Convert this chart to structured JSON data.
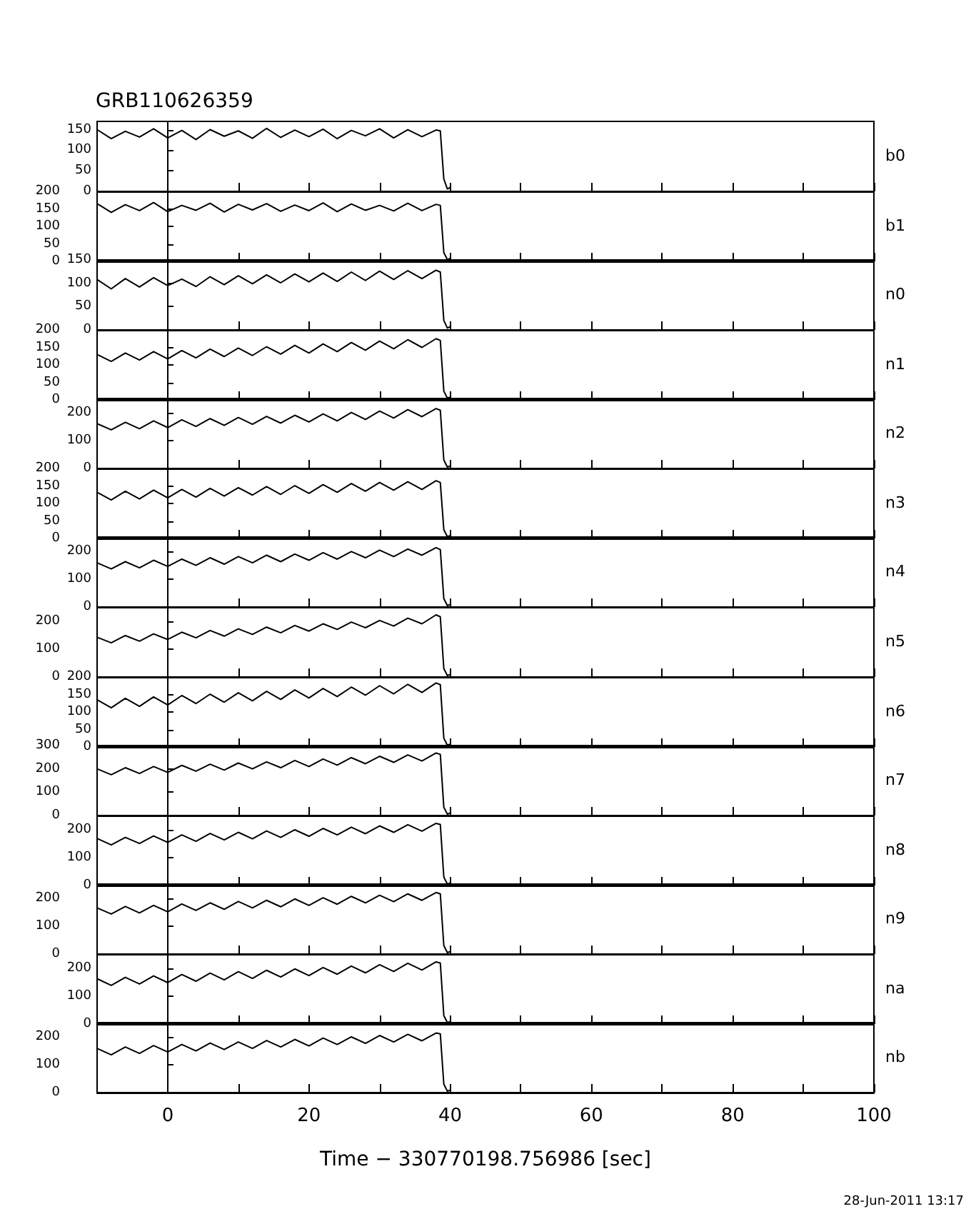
{
  "chart_data": [
    {
      "type": "line",
      "title": "GRB110626359",
      "x": [
        -10,
        -8,
        -6,
        -4,
        -2,
        0,
        2,
        4,
        6,
        8,
        10,
        12,
        14,
        16,
        18,
        20,
        22,
        24,
        26,
        28,
        30,
        32,
        34,
        36,
        38,
        38.6,
        39.1,
        39.6,
        40.1
      ],
      "values": [
        150,
        128,
        146,
        132,
        152,
        130,
        148,
        126,
        150,
        134,
        147,
        129,
        153,
        131,
        149,
        133,
        151,
        128,
        148,
        135,
        152,
        130,
        150,
        133,
        149,
        147,
        30,
        6,
        10
      ],
      "color": "#000000",
      "xlim": [
        -10,
        100
      ],
      "xticks": [
        0,
        {
          "value": 10,
          "label": null
        },
        20,
        {
          "value": 30,
          "label": null
        },
        40,
        {
          "value": 50,
          "label": null
        },
        60,
        {
          "value": 70,
          "label": null
        },
        80,
        {
          "value": 90,
          "label": null
        },
        100
      ],
      "ylim": [
        0,
        170
      ],
      "yticks": [
        0,
        50,
        100,
        150
      ],
      "tick_labels": "y",
      "marker": "none",
      "line_style": "solid",
      "annotations": [
        "b0"
      ]
    },
    {
      "type": "line",
      "x": [
        -10,
        -8,
        -6,
        -4,
        -2,
        0,
        2,
        4,
        6,
        8,
        10,
        12,
        14,
        16,
        18,
        20,
        22,
        24,
        26,
        28,
        30,
        32,
        34,
        36,
        38,
        38.6,
        39.1,
        39.6,
        40.1
      ],
      "values": [
        165,
        140,
        162,
        145,
        168,
        142,
        160,
        146,
        166,
        141,
        163,
        147,
        165,
        143,
        161,
        145,
        167,
        142,
        164,
        146,
        160,
        144,
        166,
        145,
        163,
        160,
        25,
        5,
        9
      ],
      "color": "#000000",
      "xlim": [
        -10,
        100
      ],
      "xticks": [
        0,
        {
          "value": 10,
          "label": null
        },
        20,
        {
          "value": 30,
          "label": null
        },
        40,
        {
          "value": 50,
          "label": null
        },
        60,
        {
          "value": 70,
          "label": null
        },
        80,
        {
          "value": 90,
          "label": null
        },
        100
      ],
      "ylim": [
        0,
        200
      ],
      "yticks": [
        0,
        50,
        100,
        150,
        200
      ],
      "tick_labels": "y",
      "marker": "none",
      "line_style": "solid",
      "annotations": [
        "b1"
      ]
    },
    {
      "type": "line",
      "x": [
        -10,
        -8,
        -6,
        -4,
        -2,
        0,
        2,
        4,
        6,
        8,
        10,
        12,
        14,
        16,
        18,
        20,
        22,
        24,
        26,
        28,
        30,
        32,
        34,
        36,
        38,
        38.6,
        39.1,
        39.6,
        40.1
      ],
      "values": [
        108,
        88,
        110,
        92,
        112,
        95,
        109,
        93,
        114,
        97,
        116,
        99,
        118,
        101,
        120,
        103,
        122,
        104,
        124,
        106,
        126,
        108,
        127,
        110,
        128,
        124,
        20,
        4,
        8
      ],
      "color": "#000000",
      "xlim": [
        -10,
        100
      ],
      "xticks": [
        0,
        {
          "value": 10,
          "label": null
        },
        20,
        {
          "value": 30,
          "label": null
        },
        40,
        {
          "value": 50,
          "label": null
        },
        60,
        {
          "value": 70,
          "label": null
        },
        80,
        {
          "value": 90,
          "label": null
        },
        100
      ],
      "ylim": [
        0,
        150
      ],
      "yticks": [
        0,
        50,
        100,
        150
      ],
      "tick_labels": "y",
      "marker": "none",
      "line_style": "solid",
      "annotations": [
        "n0"
      ]
    },
    {
      "type": "line",
      "x": [
        -10,
        -8,
        -6,
        -4,
        -2,
        0,
        2,
        4,
        6,
        8,
        10,
        12,
        14,
        16,
        18,
        20,
        22,
        24,
        26,
        28,
        30,
        32,
        34,
        36,
        38,
        38.6,
        39.1,
        39.6,
        40.1
      ],
      "values": [
        130,
        110,
        134,
        114,
        138,
        117,
        141,
        120,
        145,
        124,
        148,
        127,
        152,
        131,
        156,
        134,
        160,
        138,
        164,
        142,
        168,
        146,
        172,
        150,
        175,
        170,
        25,
        5,
        9
      ],
      "color": "#000000",
      "xlim": [
        -10,
        100
      ],
      "xticks": [
        0,
        {
          "value": 10,
          "label": null
        },
        20,
        {
          "value": 30,
          "label": null
        },
        40,
        {
          "value": 50,
          "label": null
        },
        60,
        {
          "value": 70,
          "label": null
        },
        80,
        {
          "value": 90,
          "label": null
        },
        100
      ],
      "ylim": [
        0,
        200
      ],
      "yticks": [
        0,
        50,
        100,
        150,
        200
      ],
      "tick_labels": "y",
      "marker": "none",
      "line_style": "solid",
      "annotations": [
        "n1"
      ]
    },
    {
      "type": "line",
      "x": [
        -10,
        -8,
        -6,
        -4,
        -2,
        0,
        2,
        4,
        6,
        8,
        10,
        12,
        14,
        16,
        18,
        20,
        22,
        24,
        26,
        28,
        30,
        32,
        34,
        36,
        38,
        38.6,
        39.1,
        39.6,
        40.1
      ],
      "values": [
        160,
        138,
        165,
        142,
        170,
        146,
        174,
        150,
        178,
        154,
        182,
        158,
        186,
        162,
        190,
        166,
        195,
        170,
        200,
        175,
        205,
        180,
        210,
        185,
        214,
        208,
        30,
        5,
        10
      ],
      "color": "#000000",
      "xlim": [
        -10,
        100
      ],
      "xticks": [
        0,
        {
          "value": 10,
          "label": null
        },
        20,
        {
          "value": 30,
          "label": null
        },
        40,
        {
          "value": 50,
          "label": null
        },
        60,
        {
          "value": 70,
          "label": null
        },
        80,
        {
          "value": 90,
          "label": null
        },
        100
      ],
      "ylim": [
        0,
        250
      ],
      "yticks": [
        0,
        100,
        200
      ],
      "tick_labels": "y",
      "marker": "none",
      "line_style": "solid",
      "annotations": [
        "n2"
      ]
    },
    {
      "type": "line",
      "x": [
        -10,
        -8,
        -6,
        -4,
        -2,
        0,
        2,
        4,
        6,
        8,
        10,
        12,
        14,
        16,
        18,
        20,
        22,
        24,
        26,
        28,
        30,
        32,
        34,
        36,
        38,
        38.6,
        39.1,
        39.6,
        40.1
      ],
      "values": [
        132,
        110,
        135,
        113,
        138,
        116,
        140,
        118,
        143,
        121,
        145,
        124,
        148,
        126,
        151,
        129,
        154,
        132,
        157,
        135,
        160,
        138,
        162,
        140,
        165,
        160,
        25,
        5,
        9
      ],
      "color": "#000000",
      "xlim": [
        -10,
        100
      ],
      "xticks": [
        0,
        {
          "value": 10,
          "label": null
        },
        20,
        {
          "value": 30,
          "label": null
        },
        40,
        {
          "value": 50,
          "label": null
        },
        60,
        {
          "value": 70,
          "label": null
        },
        80,
        {
          "value": 90,
          "label": null
        },
        100
      ],
      "ylim": [
        0,
        200
      ],
      "yticks": [
        0,
        50,
        100,
        150,
        200
      ],
      "tick_labels": "y",
      "marker": "none",
      "line_style": "solid",
      "annotations": [
        "n3"
      ]
    },
    {
      "type": "line",
      "x": [
        -10,
        -8,
        -6,
        -4,
        -2,
        0,
        2,
        4,
        6,
        8,
        10,
        12,
        14,
        16,
        18,
        20,
        22,
        24,
        26,
        28,
        30,
        32,
        34,
        36,
        38,
        38.6,
        39.1,
        39.6,
        40.1
      ],
      "values": [
        158,
        136,
        162,
        140,
        167,
        145,
        171,
        149,
        176,
        153,
        180,
        158,
        185,
        162,
        189,
        167,
        194,
        171,
        198,
        176,
        203,
        180,
        207,
        185,
        212,
        205,
        30,
        5,
        10
      ],
      "color": "#000000",
      "xlim": [
        -10,
        100
      ],
      "xticks": [
        0,
        {
          "value": 10,
          "label": null
        },
        20,
        {
          "value": 30,
          "label": null
        },
        40,
        {
          "value": 50,
          "label": null
        },
        60,
        {
          "value": 70,
          "label": null
        },
        80,
        {
          "value": 90,
          "label": null
        },
        100
      ],
      "ylim": [
        0,
        250
      ],
      "yticks": [
        0,
        100,
        200
      ],
      "tick_labels": "y",
      "marker": "none",
      "line_style": "solid",
      "annotations": [
        "n4"
      ]
    },
    {
      "type": "line",
      "x": [
        -10,
        -8,
        -6,
        -4,
        -2,
        0,
        2,
        4,
        6,
        8,
        10,
        12,
        14,
        16,
        18,
        20,
        22,
        24,
        26,
        28,
        30,
        32,
        34,
        36,
        38,
        38.6,
        39.1,
        39.6,
        40.1
      ],
      "values": [
        142,
        122,
        148,
        128,
        154,
        134,
        160,
        140,
        166,
        146,
        172,
        152,
        178,
        158,
        184,
        164,
        190,
        170,
        196,
        176,
        202,
        182,
        210,
        190,
        222,
        215,
        30,
        5,
        10
      ],
      "color": "#000000",
      "xlim": [
        -10,
        100
      ],
      "xticks": [
        0,
        {
          "value": 10,
          "label": null
        },
        20,
        {
          "value": 30,
          "label": null
        },
        40,
        {
          "value": 50,
          "label": null
        },
        60,
        {
          "value": 70,
          "label": null
        },
        80,
        {
          "value": 90,
          "label": null
        },
        100
      ],
      "ylim": [
        0,
        250
      ],
      "yticks": [
        0,
        100,
        200
      ],
      "tick_labels": "y",
      "marker": "none",
      "line_style": "solid",
      "annotations": [
        "n5"
      ]
    },
    {
      "type": "line",
      "x": [
        -10,
        -8,
        -6,
        -4,
        -2,
        0,
        2,
        4,
        6,
        8,
        10,
        12,
        14,
        16,
        18,
        20,
        22,
        24,
        26,
        28,
        30,
        32,
        34,
        36,
        38,
        38.6,
        39.1,
        39.6,
        40.1
      ],
      "values": [
        135,
        112,
        139,
        116,
        143,
        120,
        147,
        124,
        151,
        128,
        155,
        132,
        159,
        136,
        163,
        140,
        167,
        144,
        171,
        148,
        175,
        152,
        179,
        156,
        183,
        178,
        25,
        5,
        9
      ],
      "color": "#000000",
      "xlim": [
        -10,
        100
      ],
      "xticks": [
        0,
        {
          "value": 10,
          "label": null
        },
        20,
        {
          "value": 30,
          "label": null
        },
        40,
        {
          "value": 50,
          "label": null
        },
        60,
        {
          "value": 70,
          "label": null
        },
        80,
        {
          "value": 90,
          "label": null
        },
        100
      ],
      "ylim": [
        0,
        200
      ],
      "yticks": [
        0,
        50,
        100,
        150,
        200
      ],
      "tick_labels": "y",
      "marker": "none",
      "line_style": "solid",
      "annotations": [
        "n6"
      ]
    },
    {
      "type": "line",
      "x": [
        -10,
        -8,
        -6,
        -4,
        -2,
        0,
        2,
        4,
        6,
        8,
        10,
        12,
        14,
        16,
        18,
        20,
        22,
        24,
        26,
        28,
        30,
        32,
        34,
        36,
        38,
        38.6,
        39.1,
        39.6,
        40.1
      ],
      "values": [
        200,
        175,
        205,
        180,
        210,
        185,
        215,
        190,
        220,
        195,
        225,
        200,
        230,
        205,
        236,
        210,
        242,
        216,
        248,
        222,
        254,
        228,
        260,
        234,
        268,
        262,
        35,
        6,
        12
      ],
      "color": "#000000",
      "xlim": [
        -10,
        100
      ],
      "xticks": [
        0,
        {
          "value": 10,
          "label": null
        },
        20,
        {
          "value": 30,
          "label": null
        },
        40,
        {
          "value": 50,
          "label": null
        },
        60,
        {
          "value": 70,
          "label": null
        },
        80,
        {
          "value": 90,
          "label": null
        },
        100
      ],
      "ylim": [
        0,
        300
      ],
      "yticks": [
        0,
        100,
        200,
        300
      ],
      "tick_labels": "y",
      "marker": "none",
      "line_style": "solid",
      "annotations": [
        "n7"
      ]
    },
    {
      "type": "line",
      "x": [
        -10,
        -8,
        -6,
        -4,
        -2,
        0,
        2,
        4,
        6,
        8,
        10,
        12,
        14,
        16,
        18,
        20,
        22,
        24,
        26,
        28,
        30,
        32,
        34,
        36,
        38,
        38.6,
        39.1,
        39.6,
        40.1
      ],
      "values": [
        168,
        145,
        172,
        150,
        177,
        154,
        181,
        158,
        186,
        163,
        190,
        167,
        195,
        172,
        199,
        176,
        204,
        181,
        208,
        185,
        213,
        190,
        217,
        194,
        222,
        218,
        30,
        5,
        10
      ],
      "color": "#000000",
      "xlim": [
        -10,
        100
      ],
      "xticks": [
        0,
        {
          "value": 10,
          "label": null
        },
        20,
        {
          "value": 30,
          "label": null
        },
        40,
        {
          "value": 50,
          "label": null
        },
        60,
        {
          "value": 70,
          "label": null
        },
        80,
        {
          "value": 90,
          "label": null
        },
        100
      ],
      "ylim": [
        0,
        250
      ],
      "yticks": [
        0,
        100,
        200
      ],
      "tick_labels": "y",
      "marker": "none",
      "line_style": "solid",
      "annotations": [
        "n8"
      ]
    },
    {
      "type": "line",
      "x": [
        -10,
        -8,
        -6,
        -4,
        -2,
        0,
        2,
        4,
        6,
        8,
        10,
        12,
        14,
        16,
        18,
        20,
        22,
        24,
        26,
        28,
        30,
        32,
        34,
        36,
        38,
        38.6,
        39.1,
        39.6,
        40.1
      ],
      "values": [
        165,
        143,
        170,
        147,
        174,
        151,
        179,
        156,
        183,
        160,
        188,
        165,
        192,
        169,
        197,
        174,
        201,
        178,
        206,
        183,
        210,
        187,
        215,
        192,
        220,
        215,
        30,
        5,
        10
      ],
      "color": "#000000",
      "xlim": [
        -10,
        100
      ],
      "xticks": [
        0,
        {
          "value": 10,
          "label": null
        },
        20,
        {
          "value": 30,
          "label": null
        },
        40,
        {
          "value": 50,
          "label": null
        },
        60,
        {
          "value": 70,
          "label": null
        },
        80,
        {
          "value": 90,
          "label": null
        },
        100
      ],
      "ylim": [
        0,
        250
      ],
      "yticks": [
        0,
        100,
        200
      ],
      "tick_labels": "y",
      "marker": "none",
      "line_style": "solid",
      "annotations": [
        "n9"
      ]
    },
    {
      "type": "line",
      "x": [
        -10,
        -8,
        -6,
        -4,
        -2,
        0,
        2,
        4,
        6,
        8,
        10,
        12,
        14,
        16,
        18,
        20,
        22,
        24,
        26,
        28,
        30,
        32,
        34,
        36,
        38,
        38.6,
        39.1,
        39.6,
        40.1
      ],
      "values": [
        162,
        138,
        167,
        143,
        172,
        148,
        177,
        153,
        182,
        158,
        187,
        163,
        192,
        168,
        197,
        173,
        202,
        178,
        207,
        183,
        212,
        188,
        217,
        193,
        222,
        218,
        30,
        5,
        10
      ],
      "color": "#000000",
      "xlim": [
        -10,
        100
      ],
      "xticks": [
        0,
        {
          "value": 10,
          "label": null
        },
        20,
        {
          "value": 30,
          "label": null
        },
        40,
        {
          "value": 50,
          "label": null
        },
        60,
        {
          "value": 70,
          "label": null
        },
        80,
        {
          "value": 90,
          "label": null
        },
        100
      ],
      "ylim": [
        0,
        250
      ],
      "yticks": [
        0,
        100,
        200
      ],
      "tick_labels": "y",
      "marker": "none",
      "line_style": "solid",
      "annotations": [
        "na"
      ]
    },
    {
      "type": "line",
      "x": [
        -10,
        -8,
        -6,
        -4,
        -2,
        0,
        2,
        4,
        6,
        8,
        10,
        12,
        14,
        16,
        18,
        20,
        22,
        24,
        26,
        28,
        30,
        32,
        34,
        36,
        38,
        38.6,
        39.1,
        39.6,
        40.1
      ],
      "values": [
        158,
        135,
        163,
        140,
        168,
        145,
        172,
        149,
        177,
        154,
        181,
        158,
        186,
        163,
        190,
        167,
        195,
        172,
        199,
        176,
        204,
        181,
        208,
        185,
        213,
        210,
        30,
        5,
        10
      ],
      "color": "#000000",
      "xlim": [
        -10,
        100
      ],
      "xticks": [
        0,
        {
          "value": 10,
          "label": null
        },
        20,
        {
          "value": 30,
          "label": null
        },
        40,
        {
          "value": 50,
          "label": null
        },
        60,
        {
          "value": 70,
          "label": null
        },
        80,
        {
          "value": 90,
          "label": null
        },
        100
      ],
      "ylim": [
        0,
        250
      ],
      "yticks": [
        0,
        100,
        200
      ],
      "marker": "none",
      "line_style": "solid",
      "xlabel": "Time − 330770198.756986 [sec]",
      "annotations": [
        "nb",
        "28-Jun-2011 13:17"
      ]
    }
  ]
}
